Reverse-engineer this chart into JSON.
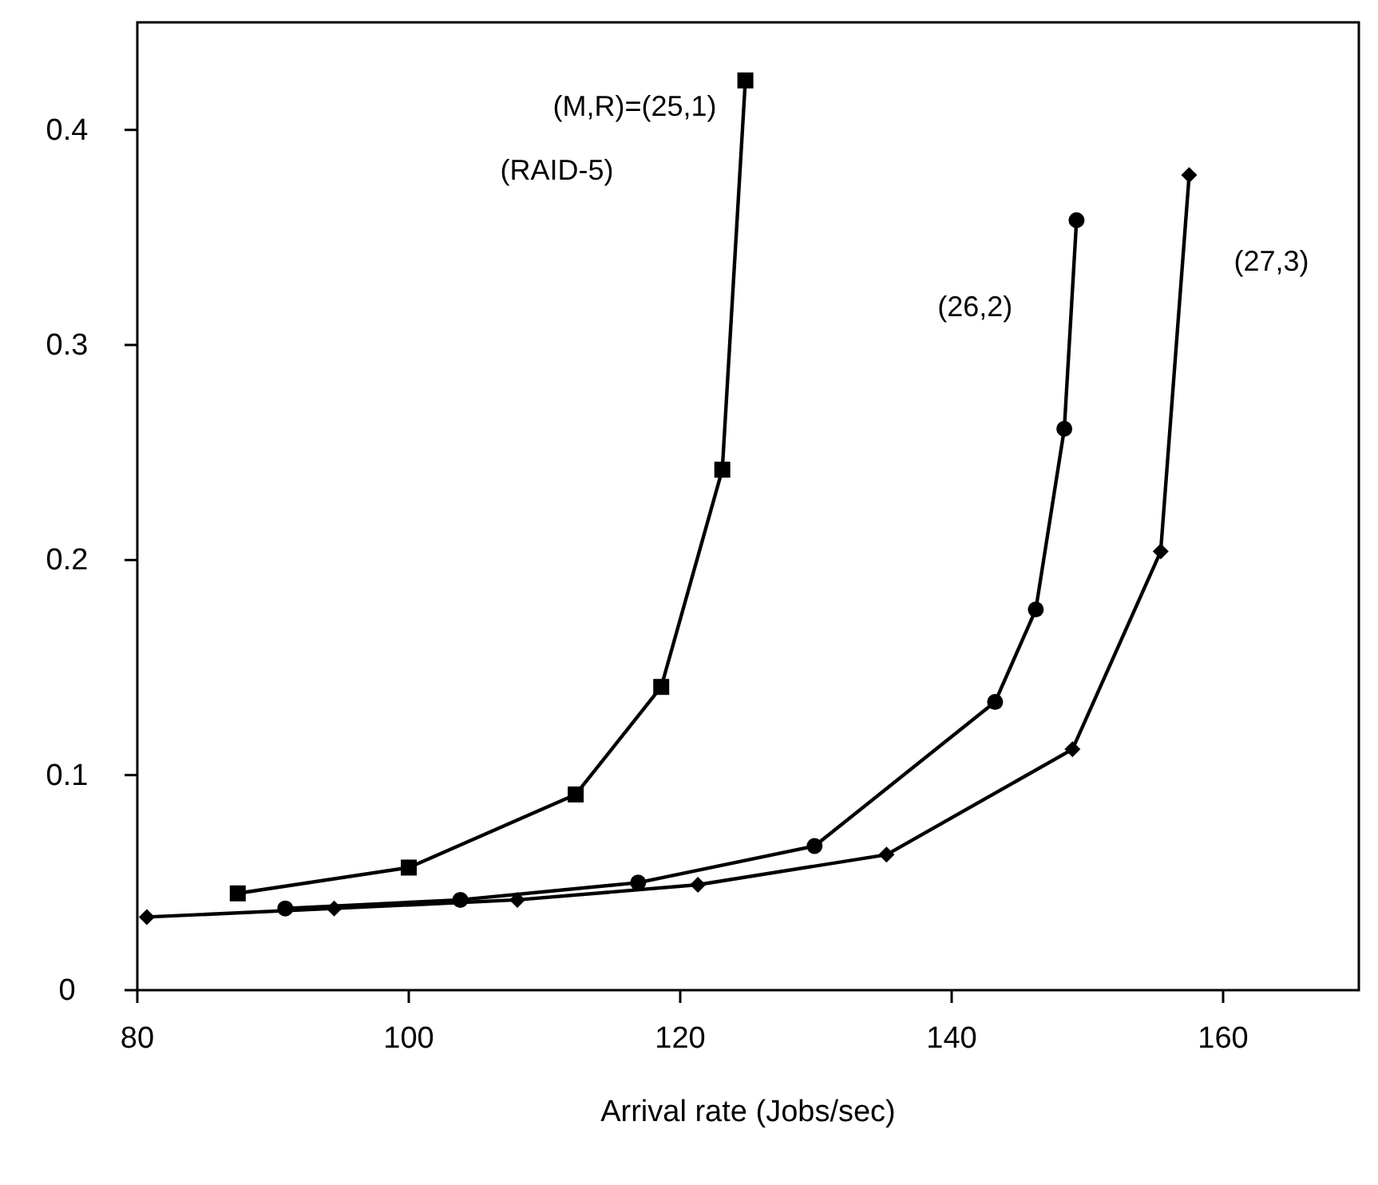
{
  "chart_data": {
    "type": "line",
    "xlabel": "Arrival rate (Jobs/sec)",
    "xlim": [
      80,
      170
    ],
    "xticks": [
      80,
      100,
      120,
      140,
      160
    ],
    "ylim": [
      0,
      0.45
    ],
    "yticks": [
      0,
      0.1,
      0.2,
      0.3,
      0.4
    ],
    "grid": false,
    "line_style": "solid",
    "series": [
      {
        "name": "(M,R)=(25,1)",
        "color": "#000000",
        "marker": "square",
        "x": [
          87.4,
          100,
          112.3,
          118.6,
          123.1,
          124.8
        ],
        "values": [
          0.045,
          0.057,
          0.091,
          0.141,
          0.242,
          0.423
        ]
      },
      {
        "name": "(26,2)",
        "color": "#000000",
        "marker": "circle",
        "x": [
          90.9,
          103.8,
          116.9,
          129.9,
          143.2,
          146.2,
          148.3,
          149.2
        ],
        "values": [
          0.038,
          0.042,
          0.05,
          0.067,
          0.134,
          0.177,
          0.261,
          0.358
        ]
      },
      {
        "name": "(27,3)",
        "color": "#000000",
        "marker": "diamond",
        "x": [
          80.7,
          94.5,
          108,
          121.3,
          135.2,
          148.9,
          155.4,
          157.5
        ],
        "values": [
          0.034,
          0.038,
          0.042,
          0.049,
          0.063,
          0.112,
          0.204,
          0.379
        ]
      }
    ],
    "annotations": [
      "(RAID-5)"
    ]
  }
}
